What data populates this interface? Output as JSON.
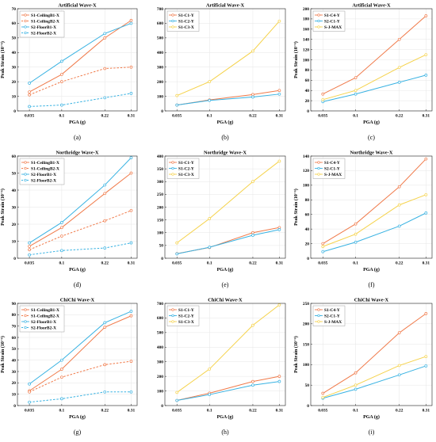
{
  "colors": {
    "orange": "#f07a4a",
    "blue": "#38b2e2",
    "yellow": "#f5d24a",
    "grid": "#e6e6e6",
    "frame": "#222222"
  },
  "chart_data": [
    {
      "type": "line",
      "title": "Artificial Wave-X",
      "caption": "(a)",
      "xlabel": "PGA (g)",
      "ylabel": "Peak Strain (10⁻⁶)",
      "ylim": [
        0,
        70
      ],
      "yticks": [
        0,
        10,
        20,
        30,
        40,
        50,
        60,
        70
      ],
      "x": [
        "0.035",
        "0.1",
        "0.22",
        "0.31"
      ],
      "legend": "top-left",
      "grid": true,
      "series": [
        {
          "name": "S1-CeilingB1-X",
          "values": [
            13,
            25,
            50,
            62
          ],
          "color": "orange",
          "dashed": false
        },
        {
          "name": "S1-CeilingB2-X",
          "values": [
            11,
            20,
            29,
            30
          ],
          "color": "orange",
          "dashed": true
        },
        {
          "name": "S2-FloorB1-X",
          "values": [
            19,
            34,
            53,
            60
          ],
          "color": "blue",
          "dashed": false
        },
        {
          "name": "S2-FloorB2-X",
          "values": [
            3,
            4,
            9,
            12
          ],
          "color": "blue",
          "dashed": true
        }
      ]
    },
    {
      "type": "line",
      "title": "Artificial Wave-X",
      "caption": "(b)",
      "xlabel": "PGA (g)",
      "ylabel": "",
      "ylim": [
        0,
        700
      ],
      "yticks": [
        0,
        100,
        200,
        300,
        400,
        500,
        600,
        700
      ],
      "x": [
        "0.035",
        "0.1",
        "0.22",
        "0.31"
      ],
      "legend": "top-left",
      "grid": true,
      "series": [
        {
          "name": "S1-C1-Y",
          "values": [
            40,
            75,
            112,
            140
          ],
          "color": "orange",
          "dashed": false
        },
        {
          "name": "S1-C2-Y",
          "values": [
            40,
            72,
            95,
            115
          ],
          "color": "blue",
          "dashed": false
        },
        {
          "name": "S1-C3-X",
          "values": [
            105,
            200,
            410,
            615
          ],
          "color": "yellow",
          "dashed": false
        }
      ]
    },
    {
      "type": "line",
      "title": "Artificial Wave-X",
      "caption": "(c)",
      "xlabel": "PGA (g)",
      "ylabel": "Peak Strain (10⁻⁶)",
      "ylim": [
        0,
        200
      ],
      "yticks": [
        0,
        20,
        40,
        60,
        80,
        100,
        120,
        140,
        160,
        180,
        200
      ],
      "x": [
        "0.035",
        "0.1",
        "0.22",
        "0.31"
      ],
      "legend": "top-left",
      "grid": true,
      "series": [
        {
          "name": "S1-C4-Y",
          "values": [
            33,
            65,
            140,
            186
          ],
          "color": "orange",
          "dashed": false
        },
        {
          "name": "S2-C1-Y",
          "values": [
            18,
            33,
            56,
            70
          ],
          "color": "blue",
          "dashed": false
        },
        {
          "name": "S-J-MAX",
          "values": [
            22,
            40,
            85,
            110
          ],
          "color": "yellow",
          "dashed": false
        }
      ]
    },
    {
      "type": "line",
      "title": "Northridge Wave-X",
      "caption": "(d)",
      "xlabel": "PGA (g)",
      "ylabel": "Peak Strain (10⁻⁶)",
      "ylim": [
        0,
        60
      ],
      "yticks": [
        0,
        10,
        20,
        30,
        40,
        50,
        60
      ],
      "x": [
        "0.035",
        "0.1",
        "0.22",
        "0.31"
      ],
      "legend": "top-left",
      "grid": true,
      "series": [
        {
          "name": "S1-CeilingB1-X",
          "values": [
            7,
            18,
            38,
            50
          ],
          "color": "orange",
          "dashed": false
        },
        {
          "name": "S1-CeilingB2-X",
          "values": [
            5,
            13,
            22,
            28
          ],
          "color": "orange",
          "dashed": true
        },
        {
          "name": "S2-FloorB1-X",
          "values": [
            9,
            21,
            43,
            59
          ],
          "color": "blue",
          "dashed": false
        },
        {
          "name": "S2-FloorB2-X",
          "values": [
            2,
            4.5,
            6,
            9
          ],
          "color": "blue",
          "dashed": true
        }
      ]
    },
    {
      "type": "line",
      "title": "Northridge Wave-X",
      "caption": "(e)",
      "xlabel": "PGA (g)",
      "ylabel": "",
      "ylim": [
        0,
        400
      ],
      "yticks": [
        0,
        50,
        100,
        150,
        200,
        250,
        300,
        350,
        400
      ],
      "x": [
        "0.035",
        "0.1",
        "0.22",
        "0.31"
      ],
      "legend": "top-left",
      "grid": true,
      "series": [
        {
          "name": "S1-C1-Y",
          "values": [
            18,
            42,
            100,
            120
          ],
          "color": "orange",
          "dashed": false
        },
        {
          "name": "S1-C2-Y",
          "values": [
            17,
            43,
            90,
            112
          ],
          "color": "blue",
          "dashed": false
        },
        {
          "name": "S1-C3-X",
          "values": [
            60,
            155,
            300,
            380
          ],
          "color": "yellow",
          "dashed": false
        }
      ]
    },
    {
      "type": "line",
      "title": "Northridge Wave-X",
      "caption": "(f)",
      "xlabel": "PGA (g)",
      "ylabel": "Peak Strain (10⁻⁶)",
      "ylim": [
        0,
        140
      ],
      "yticks": [
        0,
        20,
        40,
        60,
        80,
        100,
        120,
        140
      ],
      "x": [
        "0.035",
        "0.1",
        "0.22",
        "0.31"
      ],
      "legend": "top-left",
      "grid": true,
      "series": [
        {
          "name": "S1-C4-Y",
          "values": [
            20,
            47,
            98,
            136
          ],
          "color": "orange",
          "dashed": false
        },
        {
          "name": "S2-C1-Y",
          "values": [
            9,
            22,
            44,
            62
          ],
          "color": "blue",
          "dashed": false
        },
        {
          "name": "S-J-MAX",
          "values": [
            16,
            33,
            73,
            87
          ],
          "color": "yellow",
          "dashed": false
        }
      ]
    },
    {
      "type": "line",
      "title": "ChiChi Wave-X",
      "caption": "(g)",
      "xlabel": "PGA (g)",
      "ylabel": "Peak Strain (10⁻⁶)",
      "ylim": [
        0,
        90
      ],
      "yticks": [
        0,
        10,
        20,
        30,
        40,
        50,
        60,
        70,
        80,
        90
      ],
      "x": [
        "0.035",
        "0.1",
        "0.22",
        "0.31"
      ],
      "legend": "top-left",
      "grid": true,
      "series": [
        {
          "name": "S1-CeilingB1-X",
          "values": [
            13,
            32,
            69,
            79
          ],
          "color": "orange",
          "dashed": false
        },
        {
          "name": "S1-CeilingB2-X",
          "values": [
            12,
            25,
            36,
            39
          ],
          "color": "orange",
          "dashed": true
        },
        {
          "name": "S2-FloorB1-X",
          "values": [
            19,
            40,
            73,
            83
          ],
          "color": "blue",
          "dashed": false
        },
        {
          "name": "S2-FloorB2-X",
          "values": [
            3,
            6,
            12,
            12
          ],
          "color": "blue",
          "dashed": true
        }
      ]
    },
    {
      "type": "line",
      "title": "ChiChi Wave-X",
      "caption": "(h)",
      "xlabel": "PGA (g)",
      "ylabel": "",
      "ylim": [
        0,
        700
      ],
      "yticks": [
        0,
        100,
        200,
        300,
        400,
        500,
        600,
        700
      ],
      "x": [
        "0.035",
        "0.1",
        "0.22",
        "0.31"
      ],
      "legend": "top-left",
      "grid": true,
      "series": [
        {
          "name": "S1-C1-Y",
          "values": [
            35,
            85,
            165,
            200
          ],
          "color": "orange",
          "dashed": false
        },
        {
          "name": "S1-C2-Y",
          "values": [
            35,
            75,
            140,
            165
          ],
          "color": "blue",
          "dashed": false
        },
        {
          "name": "S1-C3-X",
          "values": [
            90,
            250,
            550,
            690
          ],
          "color": "yellow",
          "dashed": false
        }
      ]
    },
    {
      "type": "line",
      "title": "ChiChi Wave-X",
      "caption": "(i)",
      "xlabel": "PGA (g)",
      "ylabel": "Peak Strain (10⁻⁶)",
      "ylim": [
        0,
        250
      ],
      "yticks": [
        0,
        50,
        100,
        150,
        200,
        250
      ],
      "x": [
        "0.035",
        "0.1",
        "0.22",
        "0.31"
      ],
      "legend": "top-left",
      "grid": true,
      "series": [
        {
          "name": "S1-C4-Y",
          "values": [
            30,
            80,
            178,
            225
          ],
          "color": "orange",
          "dashed": false
        },
        {
          "name": "S2-C1-Y",
          "values": [
            18,
            40,
            75,
            97
          ],
          "color": "blue",
          "dashed": false
        },
        {
          "name": "S-J-MAX",
          "values": [
            20,
            50,
            98,
            120
          ],
          "color": "yellow",
          "dashed": false
        }
      ]
    }
  ]
}
